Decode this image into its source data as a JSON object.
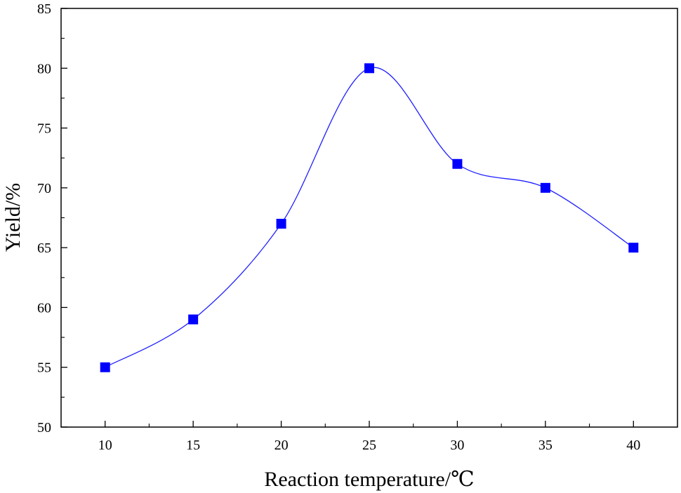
{
  "chart_data": {
    "type": "line",
    "title": "",
    "xlabel": "Reaction temperature/℃",
    "ylabel": "Yield/%",
    "x": [
      10,
      15,
      20,
      25,
      30,
      35,
      40
    ],
    "series": [
      {
        "values": [
          55,
          59,
          67,
          80,
          72,
          70,
          65
        ]
      }
    ],
    "xlim": [
      7.5,
      42.5
    ],
    "ylim": [
      50,
      85
    ],
    "xticks": [
      10,
      15,
      20,
      25,
      30,
      35,
      40
    ],
    "yticks": [
      50,
      55,
      60,
      65,
      70,
      75,
      80,
      85
    ],
    "grid": false,
    "legend": "none",
    "colors": {
      "line": "#1f1fff",
      "marker": "#0000ff",
      "axis": "#000000"
    },
    "marker": "square",
    "smoothed": true
  }
}
